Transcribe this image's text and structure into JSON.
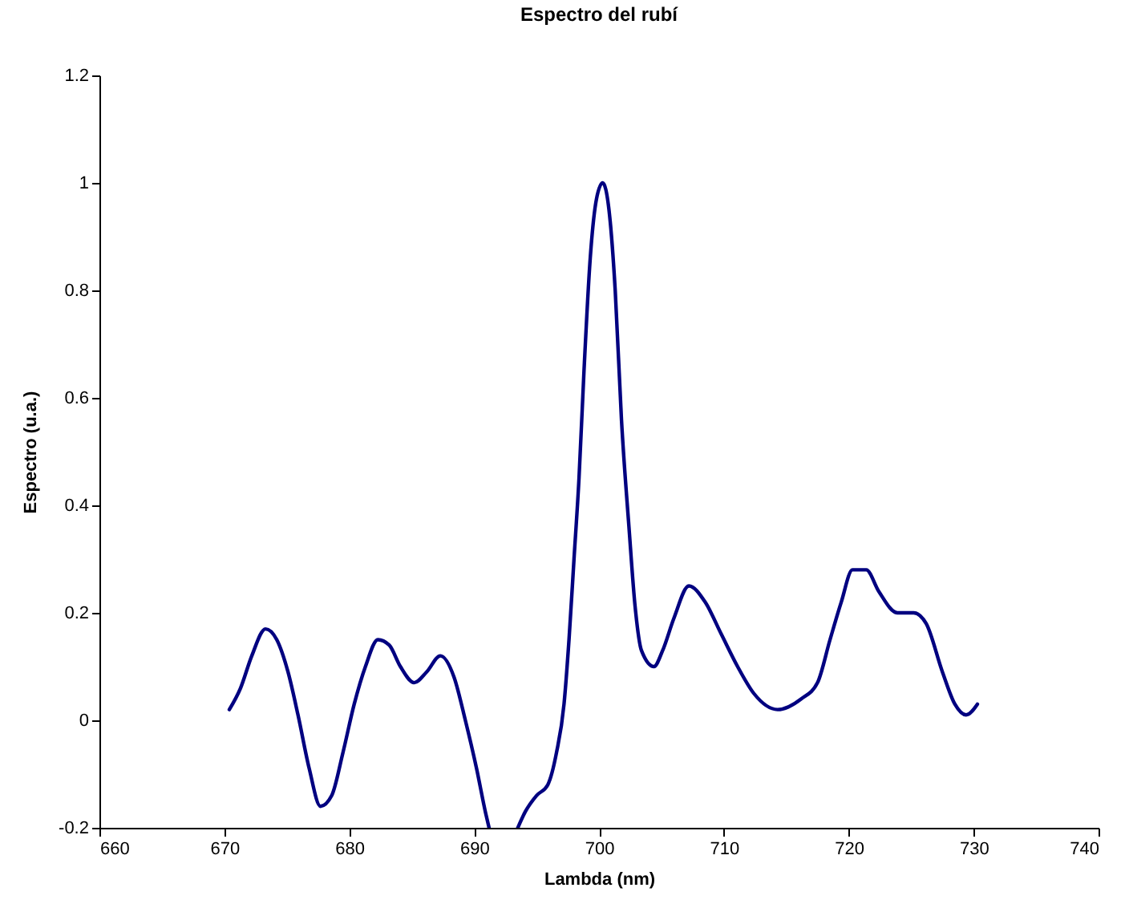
{
  "chart_data": {
    "type": "line",
    "title": "Espectro del rubí",
    "xlabel": "Lambda (nm)",
    "ylabel": "Espectro (u.a.)",
    "xlim": [
      660,
      740
    ],
    "xticks": [
      660,
      670,
      680,
      690,
      700,
      710,
      720,
      730,
      740
    ],
    "ylim": [
      -0.2,
      1.2
    ],
    "yticks": [
      -0.2,
      0,
      0.2,
      0.4,
      0.6,
      0.8,
      1,
      1.2
    ],
    "grid": false,
    "legend": false,
    "marker": "none",
    "line_style": "solid",
    "x": [
      670.4,
      671.3,
      672.2,
      673.3,
      674.2,
      675.1,
      675.9,
      676.8,
      677.7,
      678.6,
      679.5,
      680.4,
      681.3,
      682.3,
      683.2,
      684.1,
      685.2,
      686.2,
      687.3,
      688.4,
      689.3,
      690.2,
      690.9,
      691.2,
      692.3,
      693.5,
      694.1,
      695.0,
      695.9,
      696.6,
      697.2,
      697.6,
      698.0,
      698.4,
      698.8,
      699.3,
      699.8,
      700.3,
      700.8,
      701.3,
      701.8,
      702.4,
      702.9,
      703.4,
      704.4,
      705.1,
      706.0,
      707.2,
      708.5,
      709.8,
      711.1,
      712.4,
      714.3,
      716.2,
      717.5,
      718.5,
      719.4,
      720.3,
      721.4,
      722.4,
      723.9,
      725.2,
      726.2,
      727.5,
      728.5,
      729.4,
      730.3
    ],
    "series": [
      {
        "color": "#000080",
        "values": [
          0.02,
          0.06,
          0.12,
          0.17,
          0.15,
          0.09,
          0.01,
          -0.09,
          -0.16,
          -0.14,
          -0.06,
          0.03,
          0.1,
          0.15,
          0.14,
          0.1,
          0.07,
          0.09,
          0.12,
          0.08,
          0.0,
          -0.09,
          -0.17,
          -0.2,
          null,
          -0.2,
          -0.17,
          -0.14,
          -0.12,
          -0.06,
          0.03,
          0.15,
          0.3,
          0.45,
          0.65,
          0.86,
          0.97,
          1.0,
          0.95,
          0.8,
          0.56,
          0.36,
          0.21,
          0.13,
          0.1,
          0.13,
          0.19,
          0.25,
          0.22,
          0.16,
          0.1,
          0.05,
          0.02,
          0.04,
          0.07,
          0.15,
          0.22,
          0.28,
          0.28,
          0.24,
          0.2,
          0.2,
          0.18,
          0.09,
          0.03,
          0.01,
          0.03
        ]
      }
    ]
  }
}
